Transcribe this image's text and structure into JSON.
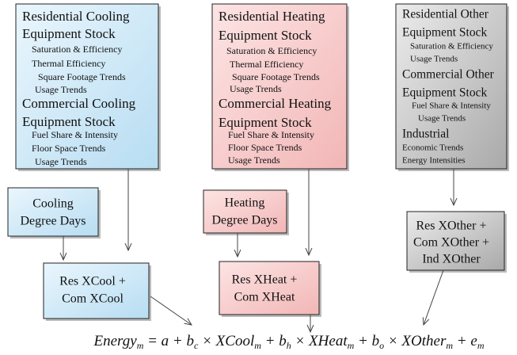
{
  "sources": [
    {
      "lines": [
        "Residential Cooling",
        "Equipment Stock",
        "Saturation & Efficiency",
        "Thermal Efficiency",
        "Square Footage Trends",
        "Usage Trends",
        "Commercial Cooling",
        "Equipment Stock",
        "Fuel Share & Intensity",
        "Floor Space Trends",
        "Usage Trends"
      ]
    },
    {
      "lines": [
        "Residential Heating",
        "Equipment Stock",
        "Saturation & Efficiency",
        "Thermal Efficiency",
        "Square Footage Trends",
        "Usage Trends",
        "Commercial Heating",
        "Equipment Stock",
        "Fuel Share & Intensity",
        "Floor Space Trends",
        "Usage Trends"
      ]
    },
    {
      "lines": [
        "Residential Other",
        "Equipment Stock",
        "Saturation & Efficiency",
        "Usage Trends",
        "Commercial Other",
        "Equipment Stock",
        "Fuel Share & Intensity",
        "Usage Trends",
        "Industrial",
        "Economic Trends",
        "Energy Intensities"
      ]
    }
  ],
  "degree_days": [
    {
      "lines": [
        "Cooling",
        "Degree Days"
      ]
    },
    {
      "lines": [
        "Heating",
        "Degree Days"
      ]
    }
  ],
  "drivers": [
    {
      "lines": [
        "Res XCool +",
        "Com XCool"
      ]
    },
    {
      "lines": [
        "Res XHeat +",
        "Com XHeat"
      ]
    },
    {
      "lines": [
        "Res XOther +",
        "Com XOther +",
        "Ind XOther"
      ]
    }
  ],
  "equation": [
    {
      "text": "Energy",
      "sub": "m"
    },
    {
      "text": " = a + b",
      "sub": "c"
    },
    {
      "text": " × XCool",
      "sub": "m"
    },
    {
      "text": " + b",
      "sub": "h"
    },
    {
      "text": " × XHeat",
      "sub": "m"
    },
    {
      "text": " + b",
      "sub": "o"
    },
    {
      "text": " × XOther",
      "sub": "m"
    },
    {
      "text": " + e",
      "sub": "m"
    }
  ]
}
